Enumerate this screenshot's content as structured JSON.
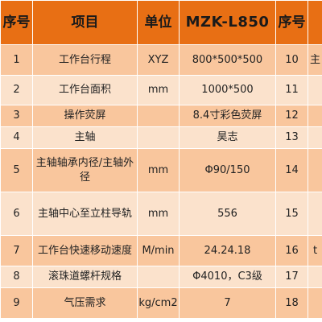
{
  "header": {
    "no_left": "序号",
    "item": "项目",
    "unit": "单位",
    "model": "MZK-L850",
    "no_right": "序号"
  },
  "rows": [
    {
      "no": "1",
      "item": "工作台行程",
      "unit": "XYZ",
      "value": "800*500*500",
      "no2": "10",
      "clip": "主"
    },
    {
      "no": "2",
      "item": "工作台面积",
      "unit": "mm",
      "value": "1000*500",
      "no2": "11",
      "clip": ""
    },
    {
      "no": "3",
      "item": "操作荧屏",
      "unit": "",
      "value": "8.4寸彩色荧屏",
      "no2": "12",
      "clip": ""
    },
    {
      "no": "4",
      "item": "主轴",
      "unit": "",
      "value": "昊志",
      "no2": "13",
      "clip": ""
    },
    {
      "no": "5",
      "item": "主轴轴承内径/主轴外径",
      "unit": "mm",
      "value": "Φ90/150",
      "no2": "14",
      "clip": ""
    },
    {
      "no": "6",
      "item": "主轴中心至立柱导轨",
      "unit": "mm",
      "value": "556",
      "no2": "15",
      "clip": ""
    },
    {
      "no": "7",
      "item": "工作台快速移动速度",
      "unit": "M/min",
      "value": "24.24.18",
      "no2": "16",
      "clip": "t"
    },
    {
      "no": "8",
      "item": "滚珠道螺杆规格",
      "unit": "",
      "value": "Φ4010，C3级",
      "no2": "17",
      "clip": ""
    },
    {
      "no": "9",
      "item": "气压需求",
      "unit": "kg/cm2",
      "value": "7",
      "no2": "18",
      "clip": ""
    }
  ]
}
